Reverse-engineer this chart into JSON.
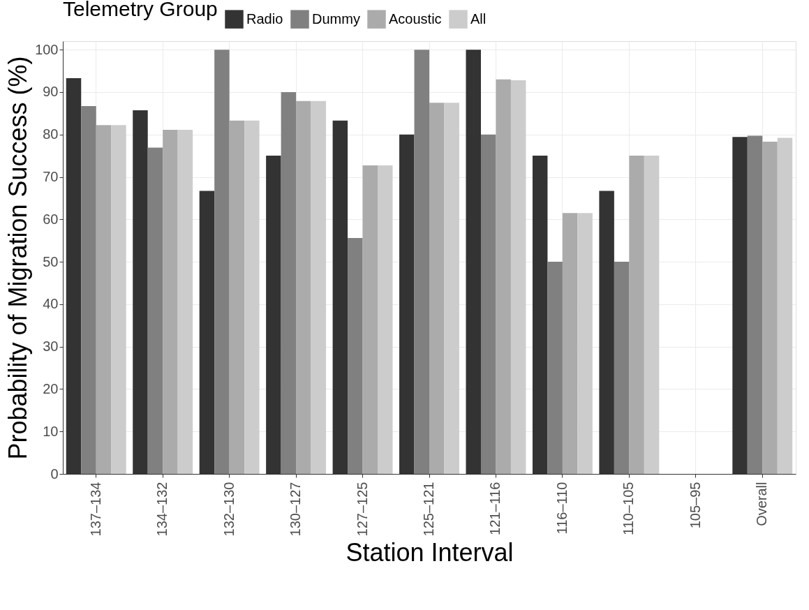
{
  "chart_data": {
    "type": "bar",
    "xlabel": "Station Interval",
    "ylabel": "Probability of Migration Success (%)",
    "legend_title": "Telemetry Group",
    "categories": [
      "137–134",
      "134–132",
      "132–130",
      "130–127",
      "127–125",
      "125–121",
      "121–116",
      "116–110",
      "110–105",
      "105–95",
      "Overall"
    ],
    "series": [
      {
        "name": "Radio",
        "color": "#333333",
        "values": [
          93.3,
          85.7,
          66.7,
          75,
          83.3,
          80,
          100,
          75,
          66.7,
          null,
          79.4
        ]
      },
      {
        "name": "Dummy",
        "color": "#808080",
        "values": [
          86.7,
          76.9,
          100,
          90,
          55.6,
          100,
          80,
          50,
          50,
          null,
          79.7
        ]
      },
      {
        "name": "Acoustic",
        "color": "#ababab",
        "values": [
          82.2,
          81.1,
          83.3,
          87.9,
          72.7,
          87.5,
          93,
          61.5,
          75,
          null,
          78.3
        ]
      },
      {
        "name": "All",
        "color": "#cccccc",
        "values": [
          82.2,
          81.1,
          83.3,
          87.9,
          72.7,
          87.5,
          92.8,
          61.5,
          75,
          null,
          79.2
        ]
      }
    ],
    "ylim": [
      0,
      102
    ],
    "yticks": [
      0,
      10,
      20,
      30,
      40,
      50,
      60,
      70,
      80,
      90,
      100
    ],
    "grid": true,
    "legend": "top"
  }
}
